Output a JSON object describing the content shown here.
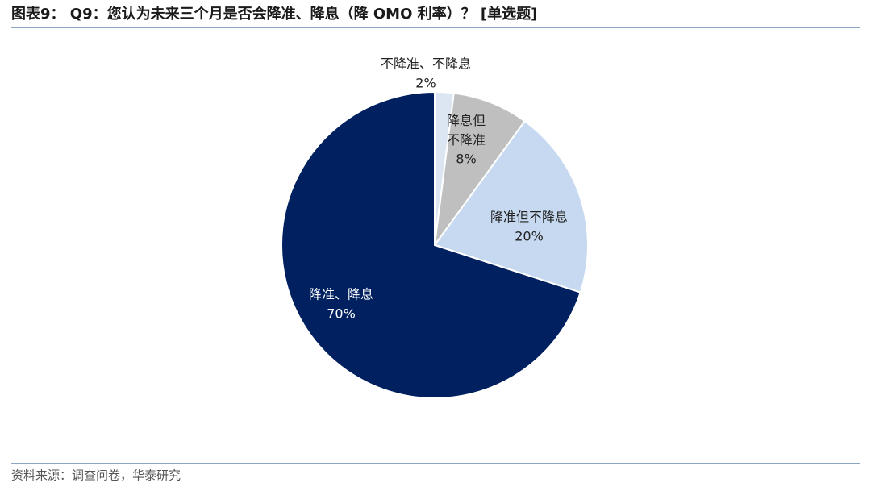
{
  "chart_data": {
    "type": "pie",
    "title": "图表9： Q9：您认为未来三个月是否会降准、降息（降 OMO 利率）？ [单选题]",
    "categories": [
      "不降准、不降息",
      "降息但不降准",
      "降准但不降息",
      "降准、降息"
    ],
    "values": [
      2,
      8,
      20,
      70
    ],
    "value_labels": [
      "2%",
      "8%",
      "20%",
      "70%"
    ],
    "colors": [
      "#dce6f2",
      "#bfbfbf",
      "#c6d9f0",
      "#002060"
    ],
    "source": "资料来源：调查问卷，华泰研究"
  }
}
